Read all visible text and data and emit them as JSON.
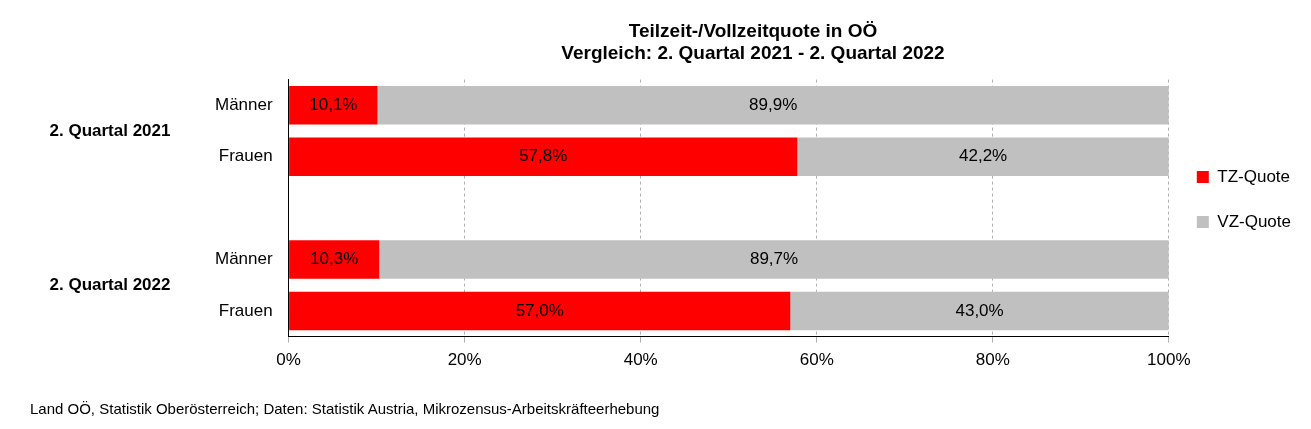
{
  "chart_data": {
    "type": "bar",
    "orientation": "horizontal",
    "stacked": true,
    "title": "Teilzeit-/Vollzeitquote in OÖ\nVergleich: 2. Quartal 2021 - 2. Quartal 2022",
    "categories": [
      "Männer",
      "Frauen",
      null,
      "Männer",
      "Frauen"
    ],
    "series": [
      {
        "name": "TZ-Quote",
        "color": "#ff0000",
        "values": [
          10.1,
          57.8,
          null,
          10.3,
          57.0
        ],
        "value_labels": [
          "10,1%",
          "57,8%",
          null,
          "10,3%",
          "57,0%"
        ]
      },
      {
        "name": "VZ-Quote",
        "color": "#c0c0c0",
        "values": [
          89.9,
          42.2,
          null,
          89.7,
          43.0
        ],
        "value_labels": [
          "89,9%",
          "42,2%",
          null,
          "89,7%",
          "43,0%"
        ]
      }
    ],
    "xlim": [
      0,
      100
    ],
    "xticks": [
      {
        "value": 0,
        "label": "0%"
      },
      {
        "value": 20,
        "label": "20%"
      },
      {
        "value": 40,
        "label": "40%"
      },
      {
        "value": 60,
        "label": "60%"
      },
      {
        "value": 80,
        "label": "80%"
      },
      {
        "value": 100,
        "label": "100%"
      }
    ],
    "grid": "x",
    "legend": "right",
    "annotations": [
      "2. Quartal 2021",
      "2. Quartal 2022",
      "Land OÖ, Statistik Oberösterreich; Daten: Statistik Austria, Mikrozensus-Arbeitskräfteerhebung"
    ]
  }
}
